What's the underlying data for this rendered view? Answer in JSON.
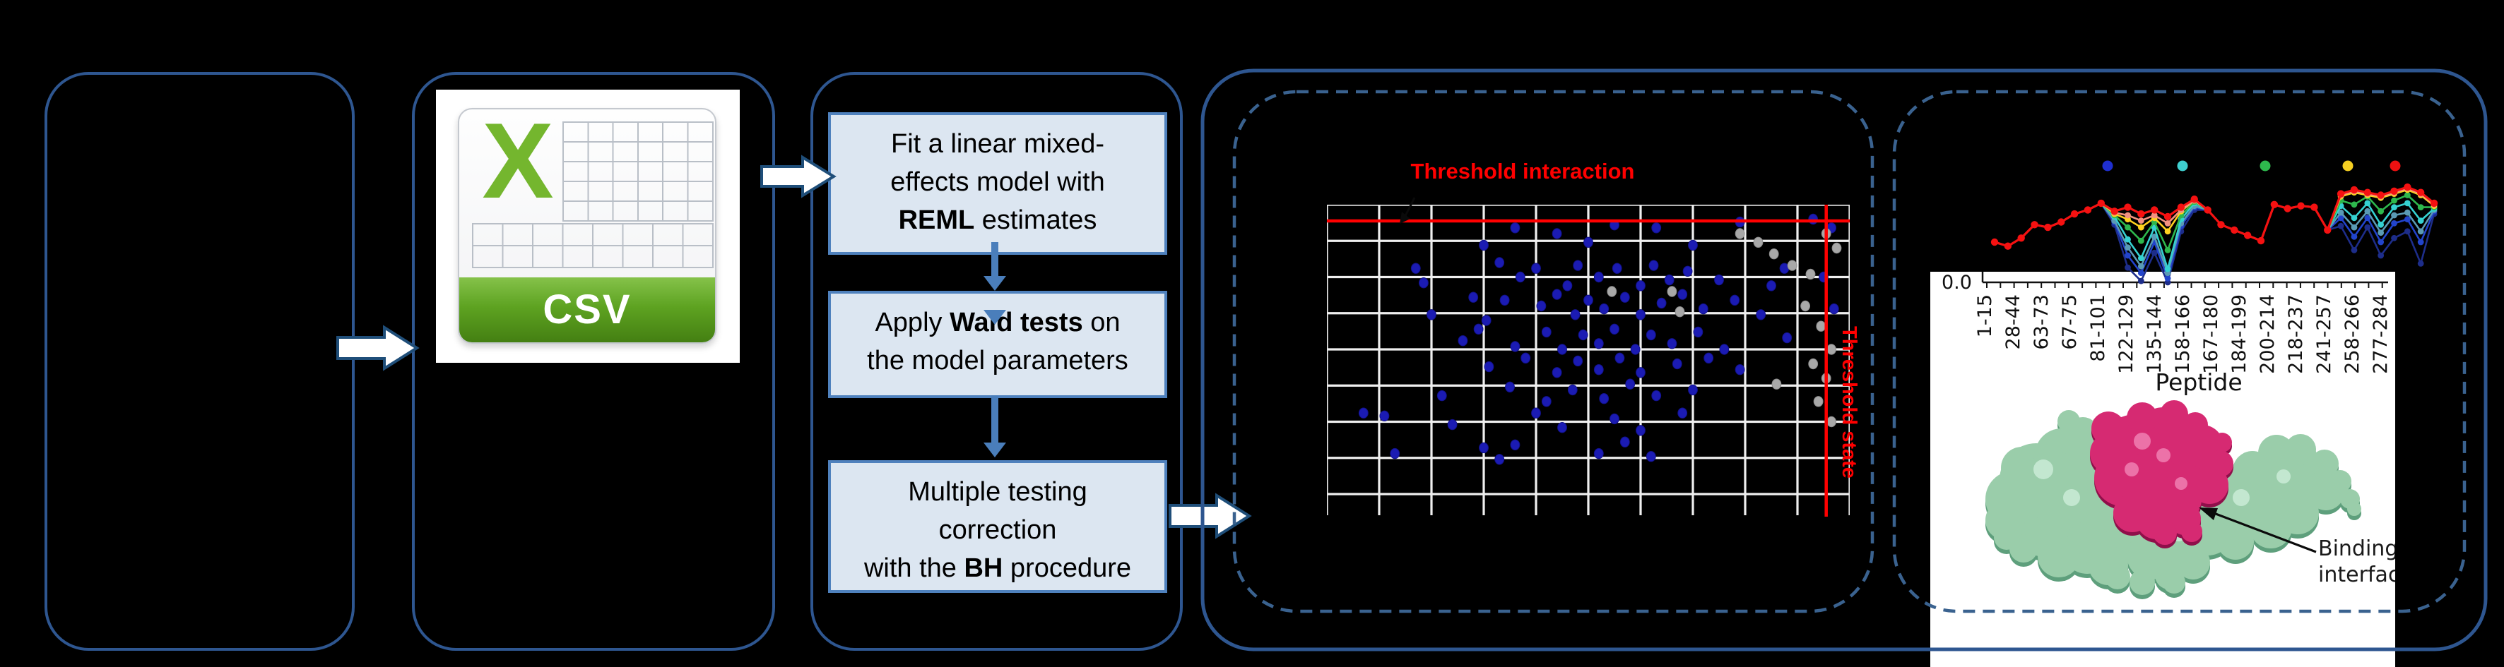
{
  "colors": {
    "background": "#000000",
    "panel_border": "#2e5690",
    "dashed_border": "#3a628f",
    "flow_box_fill": "#dce6f1",
    "flow_box_border": "#4f81bd",
    "flow_arrow": "#4a7ebb",
    "block_arrow_fill": "#ffffff",
    "block_arrow_border": "#1f4e79",
    "threshold_red": "#ff0000",
    "scatter_blue": "#1b1bb3",
    "scatter_gray": "#a8a8a8",
    "grid_white": "#efefef",
    "csv_green": "#74b62e",
    "csv_banner_green": "#5ea321",
    "protein_green": "#9acdaa",
    "protein_green_shade": "#5e9f7c",
    "protein_magenta": "#d62a72",
    "protein_magenta_shade": "#8f0f4a"
  },
  "csv_icon": {
    "letter": "X",
    "banner": "CSV"
  },
  "workflow": {
    "steps": [
      {
        "lines": [
          [
            {
              "t": "Fit a linear mixed-"
            }
          ],
          [
            {
              "t": "effects model with"
            }
          ],
          [
            {
              "t": "REML",
              "b": true
            },
            {
              "t": " estimates"
            }
          ]
        ]
      },
      {
        "lines": [
          [
            {
              "t": "Apply "
            },
            {
              "t": "Wald tests",
              "b": true
            },
            {
              "t": " on"
            }
          ],
          [
            {
              "t": "the model parameters"
            }
          ]
        ]
      },
      {
        "lines": [
          [
            {
              "t": "Multiple testing"
            }
          ],
          [
            {
              "t": "correction"
            }
          ],
          [
            {
              "t": "with the "
            },
            {
              "t": "BH",
              "b": true
            },
            {
              "t": " procedure"
            }
          ]
        ]
      }
    ]
  },
  "scatter_panel": {
    "title": "Threshold interaction",
    "vline_label": "Threshold state"
  },
  "peptide_panel": {
    "ytick": "0.0",
    "xlabel": "Peptide",
    "annotation_lines": [
      "Binding",
      "interface"
    ]
  },
  "chart_data": [
    {
      "type": "scatter",
      "title": "Threshold interaction",
      "grid": {
        "cols": 10,
        "rows": 8
      },
      "threshold_interaction_frac_y": 0.056,
      "threshold_state_frac_x": 0.955,
      "points_blue": [
        [
          0.3,
          0.14
        ],
        [
          0.36,
          0.08
        ],
        [
          0.44,
          0.1
        ],
        [
          0.5,
          0.13
        ],
        [
          0.55,
          0.07
        ],
        [
          0.63,
          0.08
        ],
        [
          0.7,
          0.14
        ],
        [
          0.79,
          0.06
        ],
        [
          0.93,
          0.05
        ],
        [
          0.965,
          0.08
        ],
        [
          0.17,
          0.22
        ],
        [
          0.185,
          0.27
        ],
        [
          0.33,
          0.2
        ],
        [
          0.37,
          0.25
        ],
        [
          0.4,
          0.22
        ],
        [
          0.46,
          0.28
        ],
        [
          0.48,
          0.21
        ],
        [
          0.52,
          0.25
        ],
        [
          0.555,
          0.22
        ],
        [
          0.6,
          0.28
        ],
        [
          0.625,
          0.21
        ],
        [
          0.655,
          0.26
        ],
        [
          0.69,
          0.23
        ],
        [
          0.75,
          0.26
        ],
        [
          0.85,
          0.28
        ],
        [
          0.875,
          0.22
        ],
        [
          0.95,
          0.25
        ],
        [
          0.2,
          0.38
        ],
        [
          0.28,
          0.32
        ],
        [
          0.305,
          0.4
        ],
        [
          0.34,
          0.33
        ],
        [
          0.41,
          0.35
        ],
        [
          0.44,
          0.31
        ],
        [
          0.475,
          0.38
        ],
        [
          0.5,
          0.33
        ],
        [
          0.53,
          0.36
        ],
        [
          0.57,
          0.32
        ],
        [
          0.6,
          0.38
        ],
        [
          0.64,
          0.34
        ],
        [
          0.68,
          0.31
        ],
        [
          0.72,
          0.36
        ],
        [
          0.78,
          0.33
        ],
        [
          0.83,
          0.38
        ],
        [
          0.97,
          0.36
        ],
        [
          0.26,
          0.47
        ],
        [
          0.29,
          0.43
        ],
        [
          0.36,
          0.49
        ],
        [
          0.42,
          0.44
        ],
        [
          0.45,
          0.5
        ],
        [
          0.49,
          0.45
        ],
        [
          0.52,
          0.48
        ],
        [
          0.55,
          0.43
        ],
        [
          0.59,
          0.5
        ],
        [
          0.62,
          0.45
        ],
        [
          0.66,
          0.48
        ],
        [
          0.71,
          0.44
        ],
        [
          0.76,
          0.5
        ],
        [
          0.88,
          0.46
        ],
        [
          0.31,
          0.56
        ],
        [
          0.38,
          0.53
        ],
        [
          0.44,
          0.58
        ],
        [
          0.48,
          0.54
        ],
        [
          0.52,
          0.57
        ],
        [
          0.56,
          0.53
        ],
        [
          0.6,
          0.58
        ],
        [
          0.67,
          0.55
        ],
        [
          0.73,
          0.53
        ],
        [
          0.79,
          0.57
        ],
        [
          0.22,
          0.66
        ],
        [
          0.35,
          0.63
        ],
        [
          0.42,
          0.68
        ],
        [
          0.47,
          0.64
        ],
        [
          0.53,
          0.67
        ],
        [
          0.58,
          0.62
        ],
        [
          0.63,
          0.66
        ],
        [
          0.7,
          0.64
        ],
        [
          0.11,
          0.73
        ],
        [
          0.24,
          0.76
        ],
        [
          0.4,
          0.72
        ],
        [
          0.45,
          0.77
        ],
        [
          0.55,
          0.74
        ],
        [
          0.6,
          0.78
        ],
        [
          0.68,
          0.72
        ],
        [
          0.3,
          0.84
        ],
        [
          0.33,
          0.88
        ],
        [
          0.36,
          0.83
        ],
        [
          0.52,
          0.86
        ],
        [
          0.57,
          0.82
        ],
        [
          0.62,
          0.87
        ],
        [
          0.13,
          0.86
        ],
        [
          0.07,
          0.72
        ]
      ],
      "points_gray": [
        [
          0.79,
          0.1
        ],
        [
          0.825,
          0.13
        ],
        [
          0.855,
          0.17
        ],
        [
          0.89,
          0.21
        ],
        [
          0.925,
          0.24
        ],
        [
          0.955,
          0.1
        ],
        [
          0.975,
          0.15
        ],
        [
          0.915,
          0.35
        ],
        [
          0.945,
          0.42
        ],
        [
          0.965,
          0.5
        ],
        [
          0.93,
          0.55
        ],
        [
          0.955,
          0.6
        ],
        [
          0.94,
          0.68
        ],
        [
          0.965,
          0.75
        ],
        [
          0.66,
          0.3
        ],
        [
          0.675,
          0.37
        ],
        [
          0.545,
          0.3
        ],
        [
          0.86,
          0.62
        ]
      ]
    },
    {
      "type": "line",
      "xlabel": "Peptide",
      "ytick_labels": [
        "0.0"
      ],
      "categories": [
        "1-15",
        "28-44",
        "63-73",
        "67-75",
        "81-101",
        "122-129",
        "135-144",
        "158-166",
        "167-180",
        "184-199",
        "200-214",
        "218-237",
        "241-257",
        "258-266",
        "277-284"
      ],
      "legend_dots": [
        {
          "name": "blue",
          "color": "#1f2fd0",
          "x": 2983
        },
        {
          "name": "cyan",
          "color": "#3fd0d0",
          "x": 3089
        },
        {
          "name": "green",
          "color": "#2eb84d",
          "x": 3206
        },
        {
          "name": "yellow",
          "color": "#f5cf22",
          "x": 3323
        },
        {
          "name": "red",
          "color": "#ee1111",
          "x": 3390
        }
      ],
      "series": [
        {
          "name": "navy",
          "color": "#1d2d8a",
          "values": [
            30,
            27,
            33,
            43,
            41,
            45,
            51,
            54,
            59,
            43,
            11,
            1,
            22,
            0,
            38,
            54,
            54,
            43,
            39,
            35,
            31,
            58,
            55,
            57,
            56,
            39,
            42,
            24,
            41,
            20,
            33,
            38,
            14,
            51
          ]
        },
        {
          "name": "blue",
          "color": "#2244cc",
          "values": [
            30,
            27,
            33,
            43,
            41,
            45,
            51,
            54,
            59,
            45,
            20,
            7,
            30,
            3,
            42,
            56,
            54,
            43,
            39,
            35,
            31,
            58,
            55,
            57,
            56,
            39,
            48,
            34,
            48,
            30,
            44,
            47,
            30,
            53
          ]
        },
        {
          "name": "steel",
          "color": "#5a9ab5",
          "values": [
            30,
            27,
            33,
            43,
            41,
            45,
            51,
            54,
            59,
            46,
            26,
            12,
            34,
            7,
            44,
            57,
            54,
            43,
            39,
            35,
            31,
            58,
            55,
            57,
            56,
            39,
            52,
            41,
            53,
            37,
            50,
            52,
            38,
            54
          ]
        },
        {
          "name": "cyan",
          "color": "#35d1d1",
          "values": [
            30,
            27,
            33,
            43,
            41,
            45,
            51,
            54,
            59,
            49,
            32,
            18,
            41,
            10,
            47,
            59,
            54,
            43,
            39,
            35,
            31,
            58,
            55,
            57,
            56,
            39,
            57,
            48,
            59,
            43,
            56,
            59,
            46,
            55
          ]
        },
        {
          "name": "green",
          "color": "#2eb84d",
          "values": [
            30,
            27,
            33,
            43,
            41,
            45,
            51,
            54,
            59,
            50,
            41,
            31,
            45,
            24,
            50,
            60,
            54,
            43,
            39,
            35,
            31,
            58,
            55,
            57,
            56,
            39,
            61,
            58,
            64,
            53,
            61,
            65,
            56,
            56
          ]
        },
        {
          "name": "yellow",
          "color": "#ffd21f",
          "values": [
            30,
            27,
            33,
            43,
            41,
            45,
            51,
            54,
            59,
            51,
            47,
            41,
            48,
            38,
            53,
            61,
            54,
            43,
            39,
            35,
            31,
            58,
            55,
            57,
            56,
            39,
            64,
            67,
            65,
            63,
            66,
            69,
            65,
            57
          ]
        },
        {
          "name": "salmon",
          "color": "#f2917f",
          "values": [
            30,
            27,
            33,
            43,
            41,
            45,
            51,
            54,
            59,
            52,
            50,
            46,
            50,
            44,
            54,
            61,
            54,
            43,
            39,
            35,
            31,
            58,
            55,
            57,
            56,
            39,
            65,
            68,
            66,
            64,
            67,
            70,
            66,
            58
          ]
        },
        {
          "name": "red",
          "color": "#f51111",
          "values": [
            30,
            27,
            33,
            43,
            41,
            45,
            51,
            54,
            59,
            53,
            56,
            51,
            54,
            49,
            56,
            62,
            54,
            43,
            39,
            35,
            31,
            58,
            55,
            57,
            56,
            39,
            66,
            69,
            67,
            65,
            68,
            71,
            67,
            59
          ]
        }
      ]
    }
  ]
}
